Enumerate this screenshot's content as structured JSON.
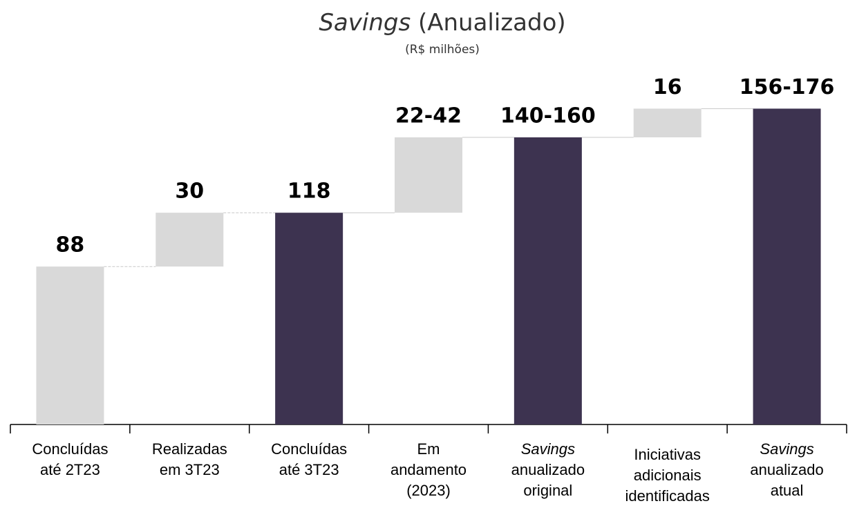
{
  "chart_data": {
    "type": "waterfall",
    "title": [
      "Savings",
      "(Anualizado)"
    ],
    "title_italic": [
      true,
      false
    ],
    "subtitle": "(R$ milhões)",
    "categories": [
      [
        "Concluídas",
        "até 2T23"
      ],
      [
        "Realizadas",
        "em 3T23"
      ],
      [
        "Concluídas",
        "até 3T23"
      ],
      [
        "Em",
        "andamento",
        "(2023)"
      ],
      [
        "Savings",
        "anualizado",
        "original"
      ],
      [
        "Iniciativas",
        "adicionais",
        "identificadas"
      ],
      [
        "Savings",
        "anualizado",
        "atual"
      ]
    ],
    "category_italic_first_line": [
      false,
      false,
      false,
      false,
      true,
      false,
      true
    ],
    "kinds": [
      "total",
      "step",
      "total",
      "step",
      "total",
      "step",
      "total"
    ],
    "values": [
      88,
      30,
      118,
      42,
      160,
      16,
      176
    ],
    "value_labels": [
      "88",
      "30",
      "118",
      "22-42",
      "140-160",
      "16",
      "156-176"
    ],
    "colors": [
      "#d9d9d9",
      "#d9d9d9",
      "#3d3350",
      "#d9d9d9",
      "#3d3350",
      "#d9d9d9",
      "#3d3350"
    ],
    "ylim": [
      0,
      190
    ]
  }
}
